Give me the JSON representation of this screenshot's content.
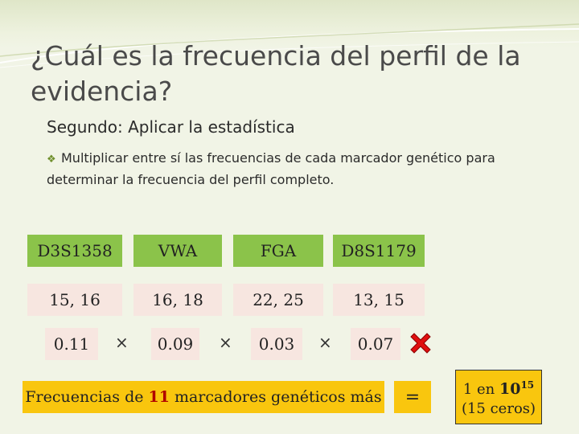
{
  "title": "¿Cuál es la frecuencia del perfil de la evidencia?",
  "subtitle": "Segundo:  Aplicar la estadística",
  "bullet": "Multiplicar entre sí las frecuencias de cada marcador genético para determinar la frecuencia del perfil completo.",
  "markers": [
    {
      "name": "D3S1358",
      "alleles": "15, 16",
      "frequency": "0.11"
    },
    {
      "name": "VWA",
      "alleles": "16, 18",
      "frequency": "0.09"
    },
    {
      "name": "FGA",
      "alleles": "22, 25",
      "frequency": "0.03"
    },
    {
      "name": "D8S1179",
      "alleles": "13, 15",
      "frequency": "0.07"
    }
  ],
  "operator": "×",
  "summary": {
    "prefix": "Frecuencias de",
    "count": "11",
    "suffix": "marcadores genéticos más"
  },
  "equals": "=",
  "result": {
    "prefix": "1 en",
    "base": "10",
    "exponent": "15",
    "note": "(15 ceros)"
  },
  "colors": {
    "header_box": "#8bc34a",
    "value_box": "#f7e6e0",
    "highlight_box": "#f9c60e",
    "count_text": "#b00000",
    "cross_icon": "#e01010"
  },
  "icons": {
    "bullet": "bullet-icon",
    "cross": "red-cross-icon"
  }
}
